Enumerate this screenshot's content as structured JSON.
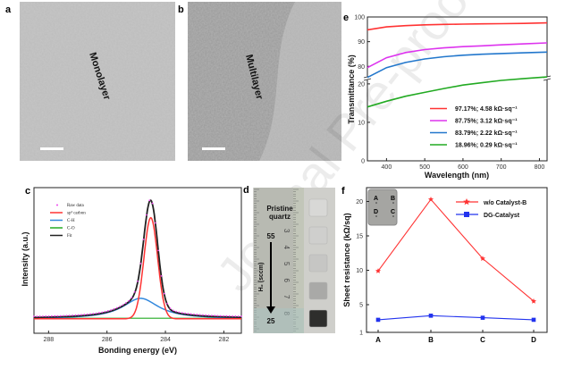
{
  "watermark": "Journal Pre-proof",
  "panels": {
    "a": {
      "label": "a",
      "text": "Monolayer"
    },
    "b": {
      "label": "b",
      "text": "Multilayer"
    },
    "d": {
      "label": "d",
      "title_line1": "Pristine",
      "title_line2": "quartz",
      "h2_label": "H₂ (sccm)",
      "top_value": "55",
      "bottom_value": "25",
      "ruler_numbers": [
        "3",
        "4",
        "5",
        "6",
        "7",
        "8"
      ],
      "sample_shades": [
        "#d8d8d6",
        "#cfcfcd",
        "#c6c6c4",
        "#a9a9a7",
        "#2e2e2c"
      ]
    }
  },
  "chart_data": [
    {
      "id": "c",
      "label": "c",
      "type": "line",
      "xlabel": "Bonding energy (eV)",
      "ylabel": "Intensity (a.u.)",
      "xlim": [
        288.5,
        281.4
      ],
      "ylim": [
        -0.12,
        1.09
      ],
      "xticks": [
        "288",
        "286",
        "284",
        "282"
      ],
      "legend": [
        "Raw data",
        "sp² carbon",
        "C-H",
        "C-O",
        "Fit"
      ],
      "colors": {
        "raw": "#ee44ee",
        "sp2": "#ff3333",
        "ch": "#3388dd",
        "co": "#22aa22",
        "fit": "#222222"
      },
      "peaks": [
        {
          "name": "sp2 carbon",
          "center": 284.5,
          "fwhm": 0.55,
          "amplitude": 0.84
        },
        {
          "name": "C-H",
          "center": 284.85,
          "fwhm": 1.5,
          "amplitude": 0.17
        },
        {
          "name": "C-O",
          "center": 285.5,
          "fwhm": 3.0,
          "amplitude": 0.005
        }
      ]
    },
    {
      "id": "e",
      "label": "e",
      "type": "line",
      "xlabel": "Wavelength (nm)",
      "ylabel": "Transmittance (%)",
      "xlim": [
        350,
        820
      ],
      "broken_axis": {
        "lower": [
          0,
          21.6
        ],
        "upper": [
          75.4,
          100
        ]
      },
      "xticks": [
        "400",
        "500",
        "600",
        "700",
        "800"
      ],
      "yticks": [
        "0",
        "10",
        "20",
        "80",
        "90",
        "100"
      ],
      "x": [
        350,
        400,
        450,
        500,
        550,
        600,
        650,
        700,
        760,
        820
      ],
      "series": [
        {
          "name": "97.17%; 4.58 kΩ·sq⁻¹",
          "color": "#ff3333",
          "values": [
            94.8,
            96.0,
            96.5,
            96.8,
            97.0,
            97.1,
            97.2,
            97.3,
            97.4,
            97.6
          ]
        },
        {
          "name": "87.75%; 3.12 kΩ·sq⁻¹",
          "color": "#dd33ee",
          "values": [
            79.5,
            83.5,
            85.6,
            86.8,
            87.5,
            88.0,
            88.3,
            88.7,
            89.1,
            89.5
          ]
        },
        {
          "name": "83.79%; 2.22 kΩ·sq⁻¹",
          "color": "#2277cc",
          "values": [
            75.5,
            79.5,
            81.6,
            83.0,
            83.9,
            84.5,
            84.9,
            85.2,
            85.5,
            85.8
          ]
        },
        {
          "name": "18.96%; 0.29 kΩ·sq⁻¹",
          "color": "#22aa22",
          "values": [
            14.0,
            15.5,
            16.8,
            17.8,
            18.8,
            19.7,
            20.3,
            20.9,
            21.4,
            21.8
          ]
        }
      ]
    },
    {
      "id": "f",
      "label": "f",
      "type": "line",
      "xlabel": "",
      "ylabel": "Sheet resistance (kΩ/sq)",
      "categories": [
        "A",
        "B",
        "C",
        "D"
      ],
      "ylim": [
        1,
        21.5
      ],
      "yticks": [
        "1",
        "5",
        "10",
        "15",
        "20"
      ],
      "inset_labels": [
        "A",
        "B",
        "D",
        "C"
      ],
      "series": [
        {
          "name": "w/o Catalyst-B",
          "color": "#ff3333",
          "marker": "star",
          "values": [
            9.9,
            20.3,
            11.7,
            5.5
          ]
        },
        {
          "name": "DG-Catalyst",
          "color": "#2233ee",
          "marker": "square",
          "values": [
            2.8,
            3.4,
            3.1,
            2.8
          ]
        }
      ]
    }
  ]
}
